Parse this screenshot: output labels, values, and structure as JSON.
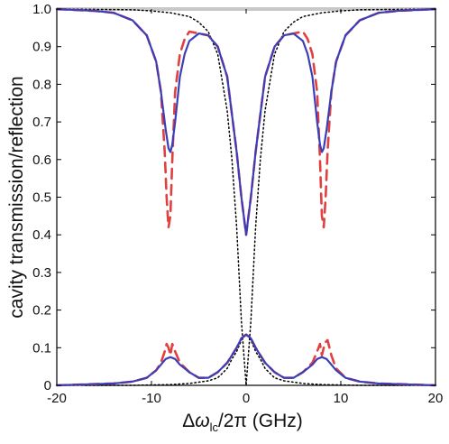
{
  "chart_data": {
    "type": "line",
    "title": "",
    "ylabel": "cavity transmission/reflection",
    "xlabel": {
      "delta": "Δ",
      "omega": "ω",
      "subscript": "lc",
      "rest": "/2π (GHz)"
    },
    "xlim": [
      -20,
      20
    ],
    "ylim": [
      0,
      1.0
    ],
    "xticks": [
      "-20",
      "-10",
      "0",
      "10",
      "20"
    ],
    "xtick_values": [
      -20,
      -10,
      0,
      10,
      20
    ],
    "yticks": [
      "0",
      "0.1",
      "0.2",
      "0.3",
      "0.4",
      "0.5",
      "0.6",
      "0.7",
      "0.8",
      "0.9",
      "1.0"
    ],
    "ytick_values": [
      0,
      0.1,
      0.2,
      0.3,
      0.4,
      0.5,
      0.6,
      0.7,
      0.8,
      0.9,
      1.0
    ],
    "grid": false,
    "legend": "none",
    "series": [
      {
        "style": "dotted",
        "color": "#000000",
        "x": [
          -20,
          -16,
          -12,
          -10,
          -8,
          -6,
          -5,
          -4,
          -3,
          -2,
          -1.5,
          -1,
          -0.5,
          0,
          0.5,
          1,
          1.5,
          2,
          3,
          4,
          5,
          6,
          8,
          10,
          12,
          16,
          20
        ],
        "y": [
          1.0,
          0.999,
          0.998,
          0.995,
          0.99,
          0.98,
          0.965,
          0.94,
          0.88,
          0.73,
          0.6,
          0.42,
          0.17,
          0.0,
          0.17,
          0.42,
          0.6,
          0.73,
          0.88,
          0.94,
          0.965,
          0.98,
          0.99,
          0.995,
          0.998,
          0.999,
          1.0
        ]
      },
      {
        "style": "dotted",
        "color": "#000000",
        "x": [
          -20,
          -12,
          -8,
          -6,
          -4,
          -3,
          -2,
          -1.5,
          -1,
          -0.5,
          0,
          0.5,
          1,
          1.5,
          2,
          3,
          4,
          6,
          8,
          12,
          20
        ],
        "y": [
          0.0,
          0.0,
          0.002,
          0.005,
          0.012,
          0.02,
          0.045,
          0.07,
          0.09,
          0.12,
          0.135,
          0.12,
          0.09,
          0.07,
          0.045,
          0.02,
          0.012,
          0.005,
          0.002,
          0.0,
          0.0
        ]
      },
      {
        "style": "dashed",
        "color": "#e04040",
        "x": [
          -20,
          -16,
          -14,
          -12,
          -10.5,
          -9.5,
          -9,
          -8.6,
          -8.4,
          -8.2,
          -8.0,
          -7.8,
          -7.5,
          -7.0,
          -6.5,
          -6,
          -5,
          -4,
          -3,
          -2,
          -1,
          -0.5,
          0,
          0.5,
          1,
          2,
          3,
          4,
          5,
          6,
          6.5,
          7.0,
          7.5,
          7.8,
          8.0,
          8.2,
          8.4,
          8.6,
          9,
          9.5,
          10.5,
          12,
          14,
          16,
          20
        ],
        "y": [
          1.0,
          0.995,
          0.99,
          0.97,
          0.93,
          0.86,
          0.78,
          0.62,
          0.5,
          0.42,
          0.45,
          0.6,
          0.78,
          0.88,
          0.92,
          0.94,
          0.935,
          0.93,
          0.9,
          0.82,
          0.62,
          0.5,
          0.4,
          0.5,
          0.62,
          0.82,
          0.9,
          0.93,
          0.935,
          0.94,
          0.92,
          0.88,
          0.78,
          0.6,
          0.45,
          0.42,
          0.5,
          0.62,
          0.78,
          0.86,
          0.93,
          0.97,
          0.99,
          0.995,
          1.0
        ]
      },
      {
        "style": "dashed",
        "color": "#e04040",
        "x": [
          -20,
          -14,
          -12,
          -10.5,
          -9.5,
          -9,
          -8.6,
          -8.4,
          -8.2,
          -8.0,
          -7.8,
          -7.5,
          -7,
          -6,
          -5,
          -4,
          -3,
          -2,
          -1,
          -0.5,
          0,
          0.5,
          1,
          2,
          3,
          4,
          5,
          6,
          7,
          7.5,
          7.8,
          8.0,
          8.2,
          8.4,
          8.6,
          9,
          9.5,
          10.5,
          12,
          14,
          20
        ],
        "y": [
          0.0,
          0.005,
          0.01,
          0.02,
          0.04,
          0.06,
          0.09,
          0.11,
          0.1,
          0.08,
          0.11,
          0.09,
          0.06,
          0.035,
          0.02,
          0.02,
          0.035,
          0.06,
          0.1,
          0.125,
          0.135,
          0.125,
          0.1,
          0.06,
          0.035,
          0.02,
          0.02,
          0.035,
          0.06,
          0.09,
          0.11,
          0.08,
          0.1,
          0.115,
          0.12,
          0.08,
          0.045,
          0.02,
          0.01,
          0.005,
          0.0
        ]
      },
      {
        "style": "solid",
        "color": "#3a3fb8",
        "x": [
          -20,
          -16,
          -14,
          -12,
          -10.5,
          -9.5,
          -9,
          -8.5,
          -8.2,
          -8.0,
          -7.8,
          -7.5,
          -7,
          -6.5,
          -6,
          -5,
          -4,
          -3,
          -2,
          -1,
          -0.5,
          0,
          0.5,
          1,
          2,
          3,
          4,
          5,
          6,
          6.5,
          7,
          7.5,
          7.8,
          8.0,
          8.2,
          8.5,
          9,
          9.5,
          10.5,
          12,
          14,
          16,
          20
        ],
        "y": [
          1.0,
          0.995,
          0.99,
          0.97,
          0.93,
          0.86,
          0.78,
          0.68,
          0.63,
          0.62,
          0.64,
          0.7,
          0.82,
          0.88,
          0.915,
          0.935,
          0.93,
          0.9,
          0.82,
          0.62,
          0.5,
          0.4,
          0.5,
          0.62,
          0.82,
          0.9,
          0.93,
          0.935,
          0.915,
          0.88,
          0.82,
          0.7,
          0.64,
          0.62,
          0.63,
          0.68,
          0.78,
          0.86,
          0.93,
          0.97,
          0.99,
          0.995,
          1.0
        ]
      },
      {
        "style": "solid",
        "color": "#3a3fb8",
        "x": [
          -20,
          -14,
          -12,
          -10.5,
          -9.5,
          -9,
          -8.5,
          -8.0,
          -7.5,
          -7,
          -6,
          -5,
          -4,
          -3,
          -2,
          -1,
          -0.5,
          0,
          0.5,
          1,
          2,
          3,
          4,
          5,
          6,
          7,
          7.5,
          8.0,
          8.5,
          9,
          9.5,
          10.5,
          12,
          14,
          20
        ],
        "y": [
          0.0,
          0.005,
          0.01,
          0.02,
          0.04,
          0.055,
          0.07,
          0.075,
          0.07,
          0.055,
          0.035,
          0.02,
          0.02,
          0.035,
          0.06,
          0.1,
          0.125,
          0.135,
          0.125,
          0.1,
          0.06,
          0.035,
          0.02,
          0.02,
          0.035,
          0.055,
          0.07,
          0.075,
          0.07,
          0.055,
          0.04,
          0.02,
          0.01,
          0.005,
          0.0
        ]
      }
    ]
  }
}
